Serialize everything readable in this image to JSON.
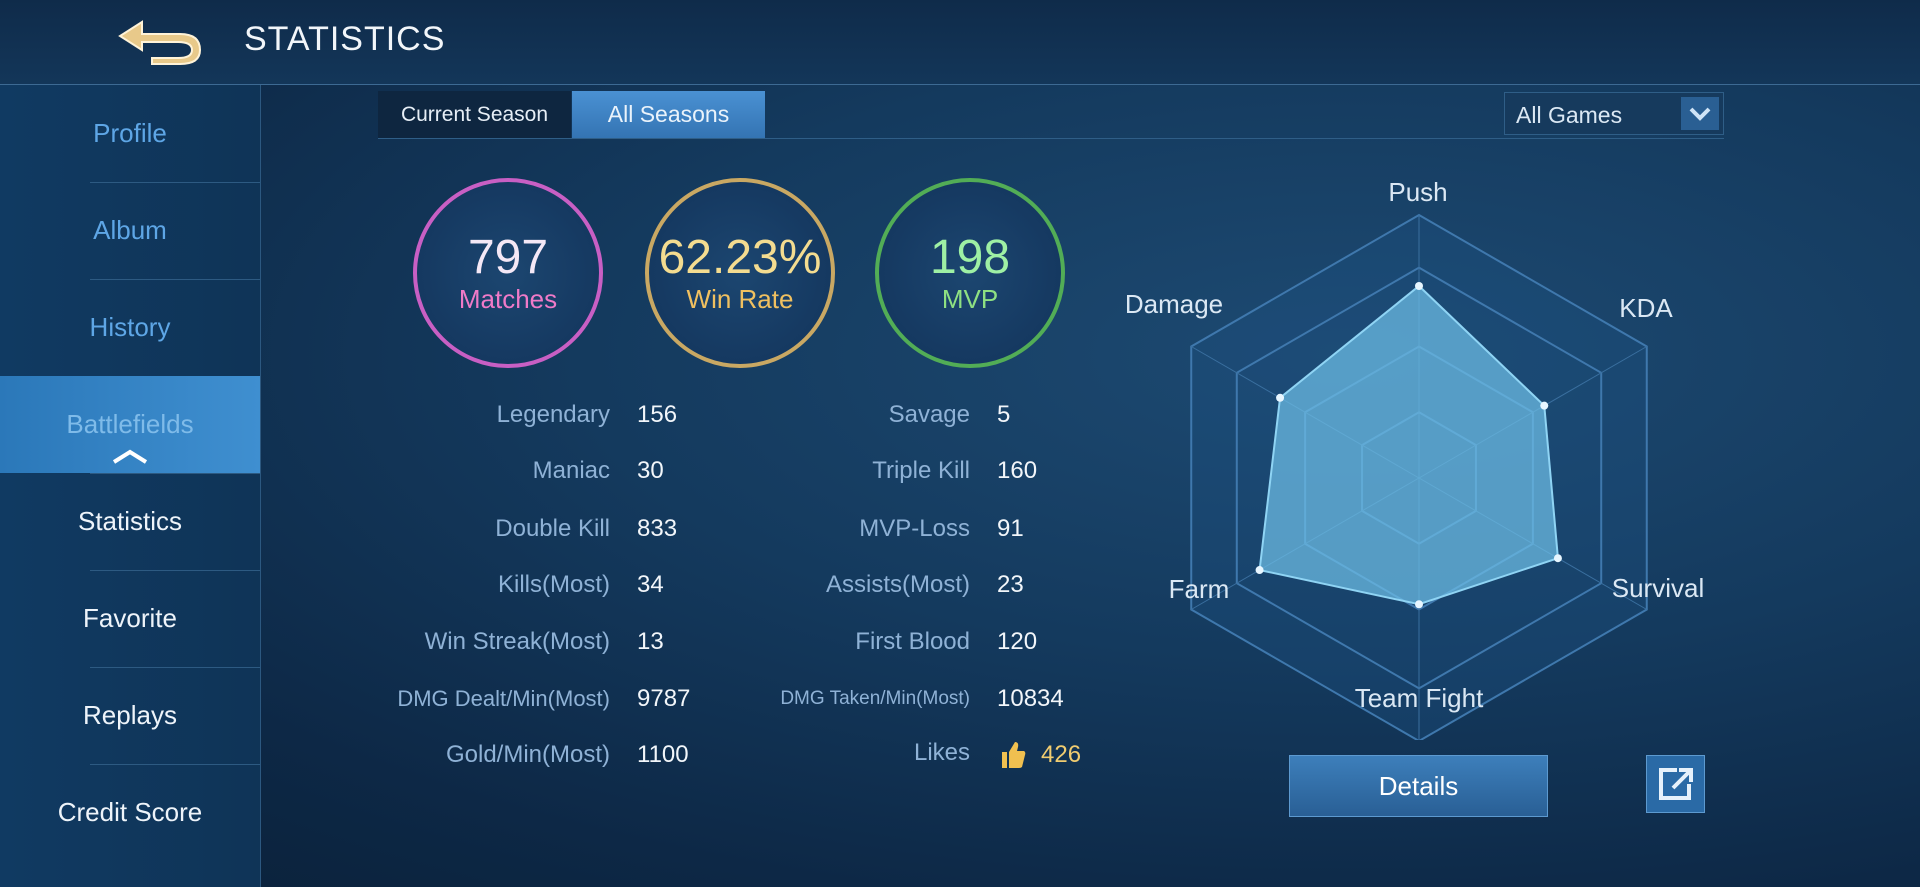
{
  "header": {
    "title": "STATISTICS"
  },
  "sidebar": {
    "items": [
      "Profile",
      "Album",
      "History",
      "Battlefields",
      "Statistics",
      "Favorite",
      "Replays",
      "Credit Score"
    ]
  },
  "tabs": [
    "Current Season",
    "All Seasons"
  ],
  "filter": "All Games",
  "summary": [
    {
      "value": "797",
      "label": "Matches"
    },
    {
      "value": "62.23%",
      "label": "Win Rate"
    },
    {
      "value": "198",
      "label": "MVP"
    }
  ],
  "stats": {
    "left": [
      {
        "label": "Legendary",
        "value": "156"
      },
      {
        "label": "Maniac",
        "value": "30"
      },
      {
        "label": "Double Kill",
        "value": "833"
      },
      {
        "label": "Kills(Most)",
        "value": "34"
      },
      {
        "label": "Win Streak(Most)",
        "value": "13"
      },
      {
        "label": "DMG Dealt/Min(Most)",
        "value": "9787"
      },
      {
        "label": "Gold/Min(Most)",
        "value": "1100"
      }
    ],
    "right": [
      {
        "label": "Savage",
        "value": "5"
      },
      {
        "label": "Triple Kill",
        "value": "160"
      },
      {
        "label": "MVP-Loss",
        "value": "91"
      },
      {
        "label": "Assists(Most)",
        "value": "23"
      },
      {
        "label": "First Blood",
        "value": "120"
      },
      {
        "label": "DMG Taken/Min(Most)",
        "value": "10834"
      },
      {
        "label": "Likes",
        "value": "426"
      }
    ]
  },
  "radar": {
    "rlim": [
      0,
      100
    ],
    "axes": [
      {
        "label": "Push",
        "value": 73
      },
      {
        "label": "KDA",
        "value": 55
      },
      {
        "label": "Survival",
        "value": 61
      },
      {
        "label": "Team Fight",
        "value": 48
      },
      {
        "label": "Farm",
        "value": 70
      },
      {
        "label": "Damage",
        "value": 61
      }
    ]
  },
  "details_button": "Details"
}
